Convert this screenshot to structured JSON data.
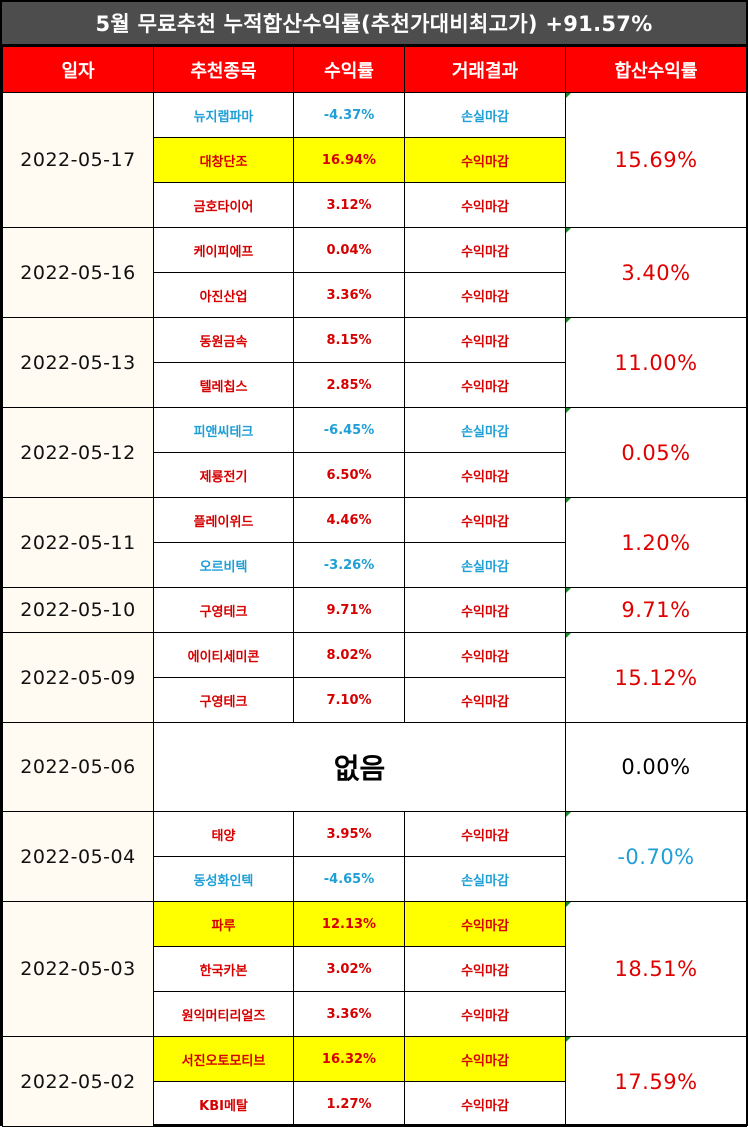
{
  "title": "5월 무료추천 누적합산수익률(추천가대비최고가) +91.57%",
  "headers": [
    "일자",
    "추천종목",
    "수익률",
    "거래결과",
    "합산수익률"
  ],
  "colors": {
    "header_bg": "#ff0000",
    "title_bg": "#4d4d4d",
    "profit": "#d60000",
    "loss": "#1f9fd6",
    "highlight": "#ffff00"
  },
  "groups": [
    {
      "date": "2022-05-17",
      "total": "15.69%",
      "total_status": "profit",
      "rows": [
        {
          "name": "뉴지랩파마",
          "ret": "-4.37%",
          "result": "손실마감",
          "status": "loss",
          "highlight": false
        },
        {
          "name": "대창단조",
          "ret": "16.94%",
          "result": "수익마감",
          "status": "profit",
          "highlight": true
        },
        {
          "name": "금호타이어",
          "ret": "3.12%",
          "result": "수익마감",
          "status": "profit",
          "highlight": false
        }
      ]
    },
    {
      "date": "2022-05-16",
      "total": "3.40%",
      "total_status": "profit",
      "rows": [
        {
          "name": "케이피에프",
          "ret": "0.04%",
          "result": "수익마감",
          "status": "profit",
          "highlight": false
        },
        {
          "name": "아진산업",
          "ret": "3.36%",
          "result": "수익마감",
          "status": "profit",
          "highlight": false
        }
      ]
    },
    {
      "date": "2022-05-13",
      "total": "11.00%",
      "total_status": "profit",
      "rows": [
        {
          "name": "동원금속",
          "ret": "8.15%",
          "result": "수익마감",
          "status": "profit",
          "highlight": false
        },
        {
          "name": "텔레칩스",
          "ret": "2.85%",
          "result": "수익마감",
          "status": "profit",
          "highlight": false
        }
      ]
    },
    {
      "date": "2022-05-12",
      "total": "0.05%",
      "total_status": "profit",
      "rows": [
        {
          "name": "피앤씨테크",
          "ret": "-6.45%",
          "result": "손실마감",
          "status": "loss",
          "highlight": false
        },
        {
          "name": "제룡전기",
          "ret": "6.50%",
          "result": "수익마감",
          "status": "profit",
          "highlight": false
        }
      ]
    },
    {
      "date": "2022-05-11",
      "total": "1.20%",
      "total_status": "profit",
      "rows": [
        {
          "name": "플레이위드",
          "ret": "4.46%",
          "result": "수익마감",
          "status": "profit",
          "highlight": false
        },
        {
          "name": "오르비텍",
          "ret": "-3.26%",
          "result": "손실마감",
          "status": "loss",
          "highlight": false
        }
      ]
    },
    {
      "date": "2022-05-10",
      "total": "9.71%",
      "total_status": "profit",
      "rows": [
        {
          "name": "구영테크",
          "ret": "9.71%",
          "result": "수익마감",
          "status": "profit",
          "highlight": false
        }
      ]
    },
    {
      "date": "2022-05-09",
      "total": "15.12%",
      "total_status": "profit",
      "rows": [
        {
          "name": "에이티세미콘",
          "ret": "8.02%",
          "result": "수익마감",
          "status": "profit",
          "highlight": false
        },
        {
          "name": "구영테크",
          "ret": "7.10%",
          "result": "수익마감",
          "status": "profit",
          "highlight": false
        }
      ]
    },
    {
      "date": "2022-05-06",
      "total": "0.00%",
      "total_status": "neutral",
      "none": "없음",
      "rows": []
    },
    {
      "date": "2022-05-04",
      "total": "-0.70%",
      "total_status": "loss",
      "rows": [
        {
          "name": "태양",
          "ret": "3.95%",
          "result": "수익마감",
          "status": "profit",
          "highlight": false
        },
        {
          "name": "동성화인텍",
          "ret": "-4.65%",
          "result": "손실마감",
          "status": "loss",
          "highlight": false
        }
      ]
    },
    {
      "date": "2022-05-03",
      "total": "18.51%",
      "total_status": "profit",
      "rows": [
        {
          "name": "파루",
          "ret": "12.13%",
          "result": "수익마감",
          "status": "profit",
          "highlight": true
        },
        {
          "name": "한국카본",
          "ret": "3.02%",
          "result": "수익마감",
          "status": "profit",
          "highlight": false
        },
        {
          "name": "원익머티리얼즈",
          "ret": "3.36%",
          "result": "수익마감",
          "status": "profit",
          "highlight": false
        }
      ]
    },
    {
      "date": "2022-05-02",
      "total": "17.59%",
      "total_status": "profit",
      "rows": [
        {
          "name": "서진오토모티브",
          "ret": "16.32%",
          "result": "수익마감",
          "status": "profit",
          "highlight": true
        },
        {
          "name": "KBI메탈",
          "ret": "1.27%",
          "result": "수익마감",
          "status": "profit",
          "highlight": false
        }
      ]
    }
  ]
}
